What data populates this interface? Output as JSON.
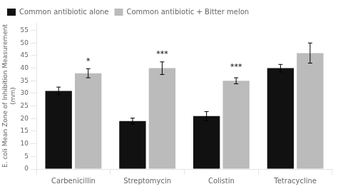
{
  "chart_data": {
    "type": "bar",
    "ylabel": "E. coli Mean Zone of Inhibition Measurement\n(mm)",
    "categories": [
      "Carbenicillin",
      "Streptomycin",
      "Colistin",
      "Tetracycline"
    ],
    "series": [
      {
        "name": "Common antibiotic alone",
        "color": "#111111",
        "values": [
          31,
          19,
          21,
          40
        ],
        "errors": [
          1.5,
          1.2,
          1.8,
          1.5
        ]
      },
      {
        "name": "Common antibiotic + Bitter melon",
        "color": "#bbbbbb",
        "values": [
          38,
          40,
          35,
          46
        ],
        "errors": [
          1.8,
          2.5,
          1.2,
          4.0
        ]
      }
    ],
    "annotations": [
      {
        "text": "*",
        "category": "Carbenicillin",
        "y": 41
      },
      {
        "text": "***",
        "category": "Streptomycin",
        "y": 44
      },
      {
        "text": "***",
        "category": "Colistin",
        "y": 39
      }
    ],
    "ylim": [
      0,
      58
    ],
    "yticks": [
      0,
      5,
      10,
      15,
      20,
      25,
      30,
      35,
      40,
      45,
      50,
      55
    ],
    "grid": false,
    "legend": "upper left"
  }
}
